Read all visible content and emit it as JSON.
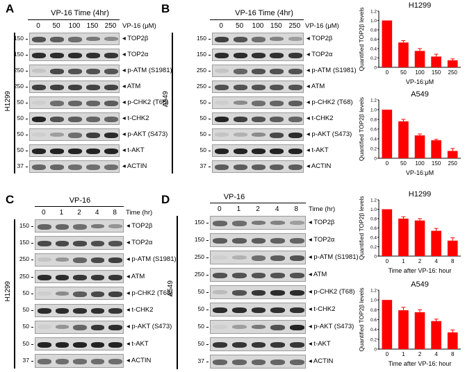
{
  "panels": [
    {
      "letter": "A",
      "title": "VP-16 Time (4hr)",
      "unit": "VP-16 (μM)",
      "lanes": [
        "0",
        "50",
        "100",
        "150",
        "250"
      ],
      "cell_line": "H1299",
      "rows": [
        {
          "protein": "TOP2β",
          "mw": "150"
        },
        {
          "protein": "TOP2α",
          "mw": "150"
        },
        {
          "protein": "p-ATM (S1981)",
          "mw": "250"
        },
        {
          "protein": "ATM",
          "mw": "250"
        },
        {
          "protein": "p-CHK2 (T68)",
          "mw": "50"
        },
        {
          "protein": "t-CHK2",
          "mw": "50"
        },
        {
          "protein": "p-AKT (S473)",
          "mw": "50"
        },
        {
          "protein": "t-AKT",
          "mw": "50"
        },
        {
          "protein": "ACTIN",
          "mw": "37"
        }
      ]
    },
    {
      "letter": "B",
      "title": "VP-16 Time (4hr)",
      "unit": "VP-16 (μM)",
      "lanes": [
        "0",
        "50",
        "100",
        "150",
        "250"
      ],
      "cell_line": "A549",
      "rows": [
        {
          "protein": "TOP2β",
          "mw": "150"
        },
        {
          "protein": "TOP2α",
          "mw": "150"
        },
        {
          "protein": "p-ATM (S1981)",
          "mw": "250"
        },
        {
          "protein": "ATM",
          "mw": "250"
        },
        {
          "protein": "p-CHK2 (T68)",
          "mw": "50"
        },
        {
          "protein": "t-CHK2",
          "mw": "50"
        },
        {
          "protein": "p-AKT (S473)",
          "mw": "50"
        },
        {
          "protein": "t-AKT",
          "mw": "50"
        },
        {
          "protein": "ACTIN",
          "mw": "37"
        }
      ]
    },
    {
      "letter": "C",
      "title": "VP-16",
      "unit": "Time (hr)",
      "lanes": [
        "0",
        "1",
        "2",
        "4",
        "8"
      ],
      "cell_line": "H1299",
      "rows": [
        {
          "protein": "TOP2β",
          "mw": "150"
        },
        {
          "protein": "TOP2α",
          "mw": "150"
        },
        {
          "protein": "p-ATM (S1981)",
          "mw": "250"
        },
        {
          "protein": "ATM",
          "mw": "250"
        },
        {
          "protein": "p-CHK2 (T68)",
          "mw": "50"
        },
        {
          "protein": "t-CHK2",
          "mw": "50"
        },
        {
          "protein": "p-AKT (S473)",
          "mw": "50"
        },
        {
          "protein": "t-AKT",
          "mw": "50"
        },
        {
          "protein": "ACTIN",
          "mw": "37"
        }
      ]
    },
    {
      "letter": "D",
      "title": "VP-16",
      "unit": "Time (hr)",
      "lanes": [
        "0",
        "1",
        "2",
        "4",
        "8"
      ],
      "cell_line": "A549",
      "rows": [
        {
          "protein": "TOP2β",
          "mw": "150"
        },
        {
          "protein": "TOP2α",
          "mw": "150"
        },
        {
          "protein": "p-ATM (S1981)",
          "mw": "250"
        },
        {
          "protein": "ATM",
          "mw": "250"
        },
        {
          "protein": "p-CHK2 (T68)",
          "mw": "50"
        },
        {
          "protein": "t-CHK2",
          "mw": "50"
        },
        {
          "protein": "p-AKT (S473)",
          "mw": "50"
        },
        {
          "protein": "t-AKT",
          "mw": "50"
        },
        {
          "protein": "ACTIN",
          "mw": "37"
        }
      ]
    }
  ],
  "chart_data": [
    {
      "type": "bar",
      "title": "H1299",
      "categories": [
        "0",
        "50",
        "100",
        "150",
        "250"
      ],
      "values": [
        1.0,
        0.53,
        0.35,
        0.23,
        0.15
      ],
      "errors": [
        0,
        0.04,
        0.05,
        0.05,
        0.03
      ],
      "xlabel": "VP-16:μM",
      "ylabel": "Quantified TOP2β levels",
      "ylim": [
        0,
        1.2
      ],
      "yticks": [
        "0",
        "0.2",
        "0.4",
        "0.6",
        "0.8",
        "1.0",
        "1.2"
      ],
      "bar_color": "#ff0000"
    },
    {
      "type": "bar",
      "title": "A549",
      "categories": [
        "0",
        "50",
        "100",
        "150",
        "250"
      ],
      "values": [
        1.0,
        0.76,
        0.47,
        0.37,
        0.15
      ],
      "errors": [
        0,
        0.04,
        0.03,
        0.02,
        0.05
      ],
      "xlabel": "VP-16:μM",
      "ylabel": "Quantified TOP2β levels",
      "ylim": [
        0,
        1.2
      ],
      "yticks": [
        "0",
        "0.2",
        "0.4",
        "0.6",
        "0.8",
        "1.0",
        "1.2"
      ],
      "bar_color": "#ff0000"
    },
    {
      "type": "bar",
      "title": "H1299",
      "categories": [
        "0",
        "1",
        "2",
        "4",
        "8"
      ],
      "values": [
        1.0,
        0.8,
        0.76,
        0.54,
        0.33
      ],
      "errors": [
        0,
        0.04,
        0.04,
        0.05,
        0.06
      ],
      "xlabel": "Time after VP-16: hour",
      "ylabel": "Quantified TOP2β levels",
      "ylim": [
        0,
        1.2
      ],
      "yticks": [
        "0",
        "0.2",
        "0.4",
        "0.6",
        "0.8",
        "1.0",
        "1.2"
      ],
      "bar_color": "#ff0000"
    },
    {
      "type": "bar",
      "title": "A549",
      "categories": [
        "0",
        "1",
        "2",
        "4",
        "8"
      ],
      "values": [
        1.0,
        0.79,
        0.75,
        0.57,
        0.34
      ],
      "errors": [
        0,
        0.06,
        0.05,
        0.04,
        0.05
      ],
      "xlabel": "Time after VP-16: hour",
      "ylabel": "Quantified TOP2β levels",
      "ylim": [
        0,
        1.2
      ],
      "yticks": [
        "0",
        "0.2",
        "0.4",
        "0.6",
        "0.8",
        "1.0",
        "1.2"
      ],
      "bar_color": "#ff0000"
    }
  ]
}
